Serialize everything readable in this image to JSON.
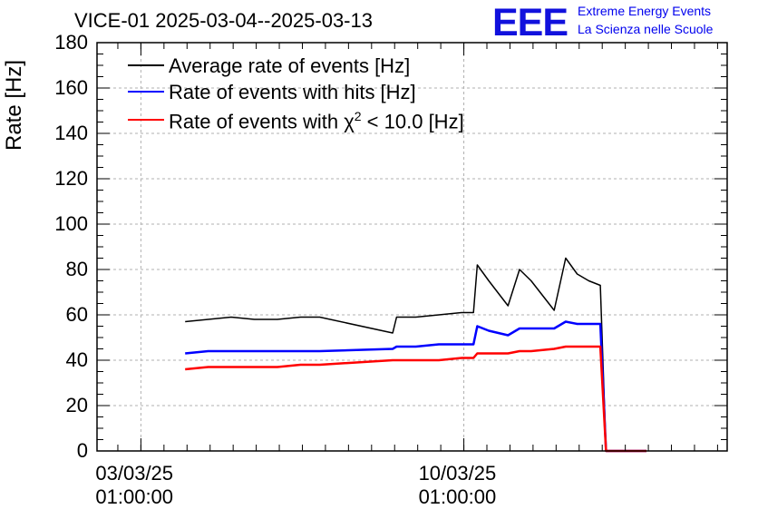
{
  "title": "VICE-01 2025-03-04--2025-03-13",
  "logo": {
    "mark": "EEE",
    "line1": "Extreme Energy Events",
    "line2": "La Scienza nelle Scuole"
  },
  "chart_data": {
    "type": "line",
    "ylabel": "Rate [Hz]",
    "xlabel": "",
    "ylim": [
      0,
      180
    ],
    "yticks": [
      0,
      20,
      40,
      60,
      80,
      100,
      120,
      140,
      160,
      180
    ],
    "xlim": [
      "2025-03-02 02:10",
      "2025-03-15 18:00"
    ],
    "xticks": [
      {
        "date": "03/03/25",
        "time": "01:00:00",
        "at": "2025-03-03 01:00"
      },
      {
        "date": "10/03/25",
        "time": "01:00:00",
        "at": "2025-03-10 01:00"
      }
    ],
    "grid": true,
    "legend_position": "top-left",
    "x": [
      "2025-03-04 00:00",
      "2025-03-04 12:00",
      "2025-03-05 00:00",
      "2025-03-05 12:00",
      "2025-03-06 00:00",
      "2025-03-06 12:00",
      "2025-03-06 22:00",
      "2025-03-08 12:00",
      "2025-03-08 14:00",
      "2025-03-09 00:00",
      "2025-03-09 12:00",
      "2025-03-10 00:00",
      "2025-03-10 06:00",
      "2025-03-10 08:00",
      "2025-03-10 14:00",
      "2025-03-11 00:00",
      "2025-03-11 06:00",
      "2025-03-11 12:00",
      "2025-03-12 00:00",
      "2025-03-12 06:00",
      "2025-03-12 12:00",
      "2025-03-12 18:00",
      "2025-03-13 00:00",
      "2025-03-13 03:00",
      "2025-03-13 09:00",
      "2025-03-14 00:00"
    ],
    "series": [
      {
        "name": "Average rate of events [Hz]",
        "color": "#000000",
        "values": [
          57,
          58,
          59,
          58,
          58,
          59,
          59,
          52,
          59,
          59,
          60,
          61,
          61,
          82,
          75,
          64,
          80,
          75,
          62,
          85,
          78,
          75,
          73,
          0,
          0,
          0
        ]
      },
      {
        "name": "Rate of events with hits [Hz]",
        "color": "#0000ff",
        "values": [
          43,
          44,
          44,
          44,
          44,
          44,
          44,
          45,
          46,
          46,
          47,
          47,
          47,
          55,
          53,
          51,
          54,
          54,
          54,
          57,
          56,
          56,
          56,
          0,
          0,
          0
        ]
      },
      {
        "name": "Rate of events with χ² < 10.0 [Hz]",
        "color": "#ff0000",
        "values": [
          36,
          37,
          37,
          37,
          37,
          38,
          38,
          40,
          40,
          40,
          40,
          41,
          41,
          43,
          43,
          43,
          44,
          44,
          45,
          46,
          46,
          46,
          46,
          0,
          0,
          0
        ]
      }
    ],
    "legend": {
      "entry1_label": "Average rate of events [Hz]",
      "entry2_label": "Rate of events with hits [Hz]",
      "entry3_text": "Rate of events with χ",
      "entry3_sup": "2",
      "entry3_rest": " < 10.0 [Hz]"
    }
  }
}
